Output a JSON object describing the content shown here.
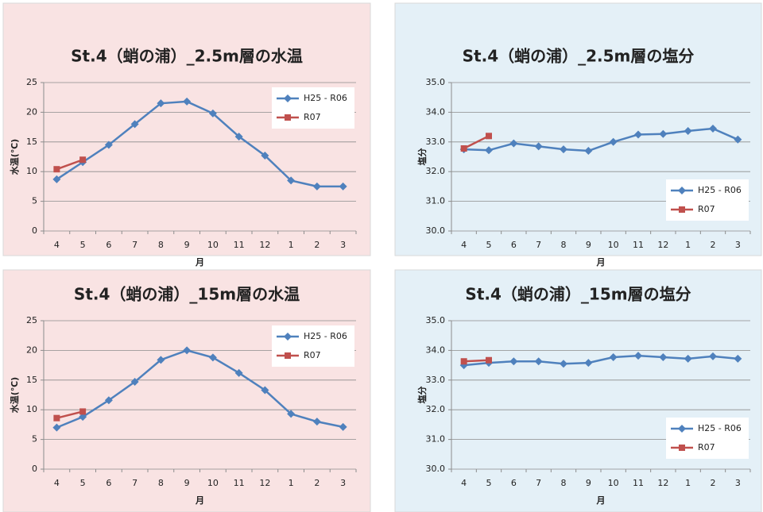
{
  "chart_data": [
    {
      "type": "line",
      "title": "St.4（蛸の浦）_2.5m層の水温",
      "x_label": "月",
      "y_label": "水温(℃)",
      "categories": [
        "4",
        "5",
        "6",
        "7",
        "8",
        "9",
        "10",
        "11",
        "12",
        "1",
        "2",
        "3"
      ],
      "series": [
        {
          "name": "H25 - R06",
          "color": "#4f81bd",
          "marker": "diamond",
          "values": [
            8.7,
            11.6,
            14.5,
            18.0,
            21.5,
            21.8,
            19.8,
            15.9,
            12.7,
            8.5,
            7.5,
            7.5
          ]
        },
        {
          "name": "R07",
          "color": "#c0504d",
          "marker": "square",
          "values": [
            10.4,
            12.0,
            null,
            null,
            null,
            null,
            null,
            null,
            null,
            null,
            null,
            null
          ]
        }
      ],
      "ylim": [
        0,
        25
      ],
      "yticks": [
        0,
        5,
        10,
        15,
        20,
        25
      ],
      "grid": true,
      "legend": "upper right"
    },
    {
      "type": "line",
      "title": "St.4（蛸の浦）_2.5m層の塩分",
      "x_label": "月",
      "y_label": "塩分",
      "categories": [
        "4",
        "5",
        "6",
        "7",
        "8",
        "9",
        "10",
        "11",
        "12",
        "1",
        "2",
        "3"
      ],
      "series": [
        {
          "name": "H25 - R06",
          "color": "#4f81bd",
          "marker": "diamond",
          "values": [
            32.75,
            32.72,
            32.95,
            32.85,
            32.75,
            32.7,
            33.0,
            33.25,
            33.27,
            33.37,
            33.45,
            33.08
          ]
        },
        {
          "name": "R07",
          "color": "#c0504d",
          "marker": "square",
          "values": [
            32.78,
            33.2,
            null,
            null,
            null,
            null,
            null,
            null,
            null,
            null,
            null,
            null
          ]
        }
      ],
      "ylim": [
        30,
        35
      ],
      "yticks": [
        {
          "value": 30,
          "label": "30.0"
        },
        {
          "value": 31,
          "label": "31.0"
        },
        {
          "value": 32,
          "label": "32.0"
        },
        {
          "value": 33,
          "label": "33.0"
        },
        {
          "value": 34,
          "label": "34.0"
        },
        {
          "value": 35,
          "label": "35.0"
        }
      ],
      "grid": true,
      "legend": "lower right"
    },
    {
      "type": "line",
      "title": "St.4（蛸の浦）_15m層の水温",
      "x_label": "月",
      "y_label": "水温(℃)",
      "categories": [
        "4",
        "5",
        "6",
        "7",
        "8",
        "9",
        "10",
        "11",
        "12",
        "1",
        "2",
        "3"
      ],
      "series": [
        {
          "name": "H25 - R06",
          "color": "#4f81bd",
          "marker": "diamond",
          "values": [
            7.0,
            8.8,
            11.6,
            14.7,
            18.4,
            20.0,
            18.8,
            16.2,
            13.3,
            9.3,
            8.0,
            7.1
          ]
        },
        {
          "name": "R07",
          "color": "#c0504d",
          "marker": "square",
          "values": [
            8.6,
            9.7,
            null,
            null,
            null,
            null,
            null,
            null,
            null,
            null,
            null,
            null
          ]
        }
      ],
      "ylim": [
        0,
        25
      ],
      "yticks": [
        0,
        5,
        10,
        15,
        20,
        25
      ],
      "grid": true,
      "legend": "upper right"
    },
    {
      "type": "line",
      "title": "St.4（蛸の浦）_15m層の塩分",
      "x_label": "月",
      "y_label": "塩分",
      "categories": [
        "4",
        "5",
        "6",
        "7",
        "8",
        "9",
        "10",
        "11",
        "12",
        "1",
        "2",
        "3"
      ],
      "series": [
        {
          "name": "H25 - R06",
          "color": "#4f81bd",
          "marker": "diamond",
          "values": [
            33.5,
            33.58,
            33.63,
            33.63,
            33.55,
            33.58,
            33.77,
            33.82,
            33.77,
            33.72,
            33.8,
            33.72
          ]
        },
        {
          "name": "R07",
          "color": "#c0504d",
          "marker": "square",
          "values": [
            33.63,
            33.67,
            null,
            null,
            null,
            null,
            null,
            null,
            null,
            null,
            null,
            null
          ]
        }
      ],
      "ylim": [
        30,
        35
      ],
      "yticks": [
        {
          "value": 30,
          "label": "30.0"
        },
        {
          "value": 31,
          "label": "31.0"
        },
        {
          "value": 32,
          "label": "32.0"
        },
        {
          "value": 33,
          "label": "33.0"
        },
        {
          "value": 34,
          "label": "34.0"
        },
        {
          "value": 35,
          "label": "35.0"
        }
      ],
      "grid": true,
      "legend": "lower right"
    }
  ]
}
